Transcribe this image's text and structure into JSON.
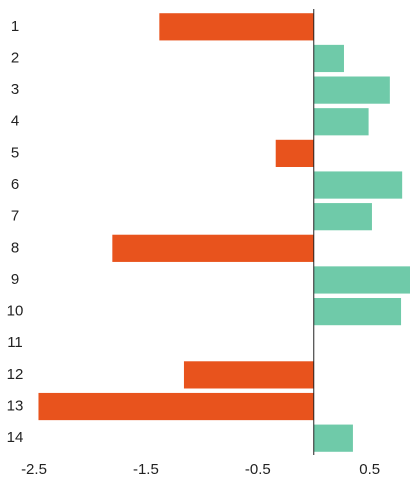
{
  "chart_data": {
    "type": "bar",
    "orientation": "horizontal",
    "categories": [
      "1",
      "2",
      "3",
      "4",
      "5",
      "6",
      "7",
      "8",
      "9",
      "10",
      "11",
      "12",
      "13",
      "14"
    ],
    "values": [
      -1.38,
      0.27,
      0.68,
      0.49,
      -0.34,
      0.79,
      0.52,
      -1.8,
      0.86,
      0.78,
      0,
      -1.16,
      -2.46,
      0.35
    ],
    "color_negative": "#e8531d",
    "color_positive": "#6fcaa9",
    "xlim": [
      -2.5,
      0.86
    ],
    "xticks": [
      -2.5,
      -1.5,
      -0.5,
      0.5
    ]
  }
}
